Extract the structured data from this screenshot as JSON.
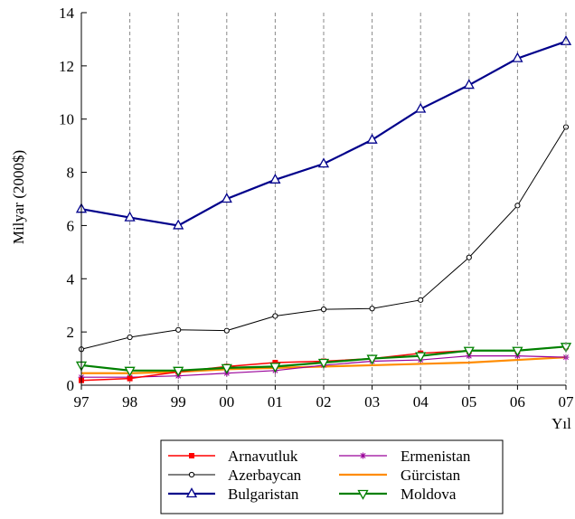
{
  "chart_data": {
    "type": "line",
    "title": "",
    "xlabel": "Yıl",
    "ylabel": "Milyar (2000$)",
    "categories": [
      "97",
      "98",
      "99",
      "00",
      "01",
      "02",
      "03",
      "04",
      "05",
      "06",
      "07"
    ],
    "ylim": [
      0,
      14
    ],
    "yticks": [
      "0",
      "2",
      "4",
      "6",
      "8",
      "10",
      "12",
      "14"
    ],
    "grid": "vertical-dashed",
    "legend_position": "bottom",
    "series": [
      {
        "name": "Arnavutluk",
        "color": "#ff0000",
        "marker": "square",
        "values": [
          0.18,
          0.25,
          0.5,
          0.7,
          0.85,
          0.9,
          1.0,
          1.2,
          1.3,
          1.3,
          1.45
        ]
      },
      {
        "name": "Ermenistan",
        "color": "#990099",
        "marker": "star",
        "values": [
          0.3,
          0.3,
          0.35,
          0.45,
          0.55,
          0.75,
          0.9,
          0.95,
          1.1,
          1.1,
          1.05
        ]
      },
      {
        "name": "Azerbaycan",
        "color": "#000000",
        "marker": "circle",
        "values": [
          1.35,
          1.8,
          2.08,
          2.05,
          2.6,
          2.85,
          2.88,
          3.2,
          4.8,
          6.75,
          9.7
        ]
      },
      {
        "name": "Gürcistan",
        "color": "#ff8c00",
        "marker": "none",
        "values": [
          0.45,
          0.45,
          0.5,
          0.6,
          0.65,
          0.7,
          0.75,
          0.8,
          0.85,
          0.95,
          1.05
        ]
      },
      {
        "name": "Bulgaristan",
        "color": "#00008b",
        "marker": "triangle-up",
        "values": [
          6.62,
          6.3,
          6.0,
          7.0,
          7.72,
          8.32,
          9.22,
          10.38,
          11.28,
          12.28,
          12.92
        ]
      },
      {
        "name": "Moldova",
        "color": "#008000",
        "marker": "triangle-down",
        "values": [
          0.75,
          0.55,
          0.55,
          0.65,
          0.7,
          0.85,
          1.0,
          1.1,
          1.3,
          1.3,
          1.45
        ]
      }
    ],
    "legend_order": [
      "Arnavutluk",
      "Ermenistan",
      "Azerbaycan",
      "Gürcistan",
      "Bulgaristan",
      "Moldova"
    ]
  }
}
